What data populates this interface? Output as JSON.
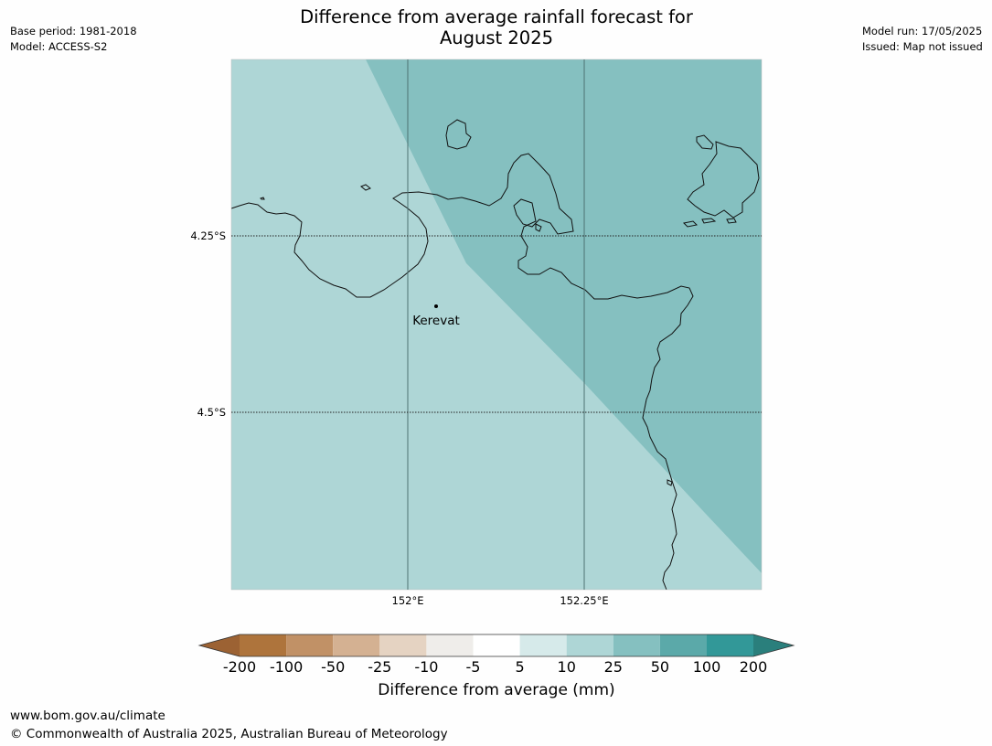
{
  "header": {
    "base_period": "Base period: 1981-2018",
    "model": "Model: ACCESS-S2",
    "model_run": "Model run: 17/05/2025",
    "issued": "Issued: Map not issued"
  },
  "title": {
    "line1": "Difference from average rainfall forecast for",
    "line2": "August 2025"
  },
  "map": {
    "place_label": "Kerevat",
    "lat_labels": [
      "4.25°S",
      "4.5°S"
    ],
    "lon_labels": [
      "152°E",
      "152.25°E"
    ],
    "region_colors": {
      "c_5_10": "#aed6d6",
      "c_10_25": "#85c0c0"
    }
  },
  "colorbar": {
    "label": "Difference from average (mm)",
    "ticks": [
      "-200",
      "-100",
      "-50",
      "-25",
      "-10",
      "-5",
      "5",
      "10",
      "25",
      "50",
      "100",
      "200"
    ],
    "colors": [
      "#9c6233",
      "#ae743c",
      "#c19166",
      "#d4b192",
      "#e5d3c2",
      "#efedea",
      "#ffffff",
      "#d6eaea",
      "#aed6d6",
      "#85c0c0",
      "#5ba9a9",
      "#329898",
      "#2a7f7c"
    ]
  },
  "footer": {
    "url": "www.bom.gov.au/climate",
    "copyright": "© Commonwealth of Australia 2025, Australian Bureau of Meteorology"
  }
}
